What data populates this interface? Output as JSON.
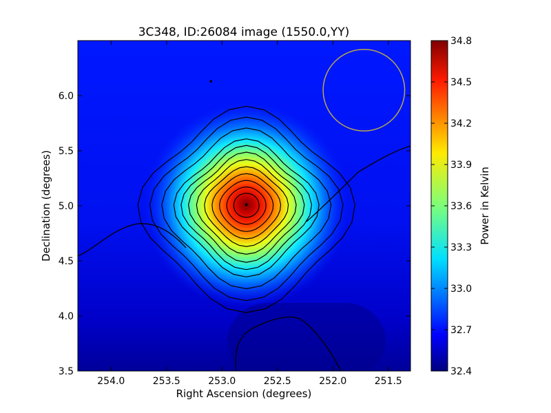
{
  "chart_data": {
    "type": "heatmap",
    "title": "3C348, ID:26084 image (1550.0,YY)",
    "xlabel": "Right Ascension (degrees)",
    "ylabel": "Declination (degrees)",
    "colorbar_label": "Power in Kelvin",
    "colormap": "jet",
    "x_axis_inverted": true,
    "xlim": [
      254.3,
      251.3
    ],
    "ylim": [
      3.5,
      6.5
    ],
    "x_ticks": [
      254.0,
      253.5,
      253.0,
      252.5,
      252.0,
      251.5
    ],
    "x_tick_labels": [
      "254.0",
      "253.5",
      "253.0",
      "252.5",
      "252.0",
      "251.5"
    ],
    "y_ticks": [
      3.5,
      4.0,
      4.5,
      5.0,
      5.5,
      6.0
    ],
    "y_tick_labels": [
      "3.5",
      "4.0",
      "4.5",
      "5.0",
      "5.5",
      "6.0"
    ],
    "colorbar_range": [
      32.4,
      34.8
    ],
    "colorbar_ticks": [
      32.4,
      32.7,
      33.0,
      33.3,
      33.6,
      33.9,
      34.2,
      34.5,
      34.8
    ],
    "colorbar_tick_labels": [
      "32.4",
      "32.7",
      "33.0",
      "33.3",
      "33.6",
      "33.9",
      "34.2",
      "34.5",
      "34.8"
    ],
    "source": {
      "ra": 252.78,
      "dec": 5.01,
      "peak_kelvin": 34.8
    },
    "background_kelvin": 32.6,
    "contour_count": 12,
    "marker_points": [
      {
        "ra": 252.78,
        "dec": 5.01
      },
      {
        "ra": 253.1,
        "dec": 6.13
      }
    ],
    "beam_circle": {
      "ra": 251.72,
      "dec": 6.05,
      "radius_deg": 0.37,
      "color": "#b8a84a"
    },
    "grid": false,
    "legend": "none"
  }
}
